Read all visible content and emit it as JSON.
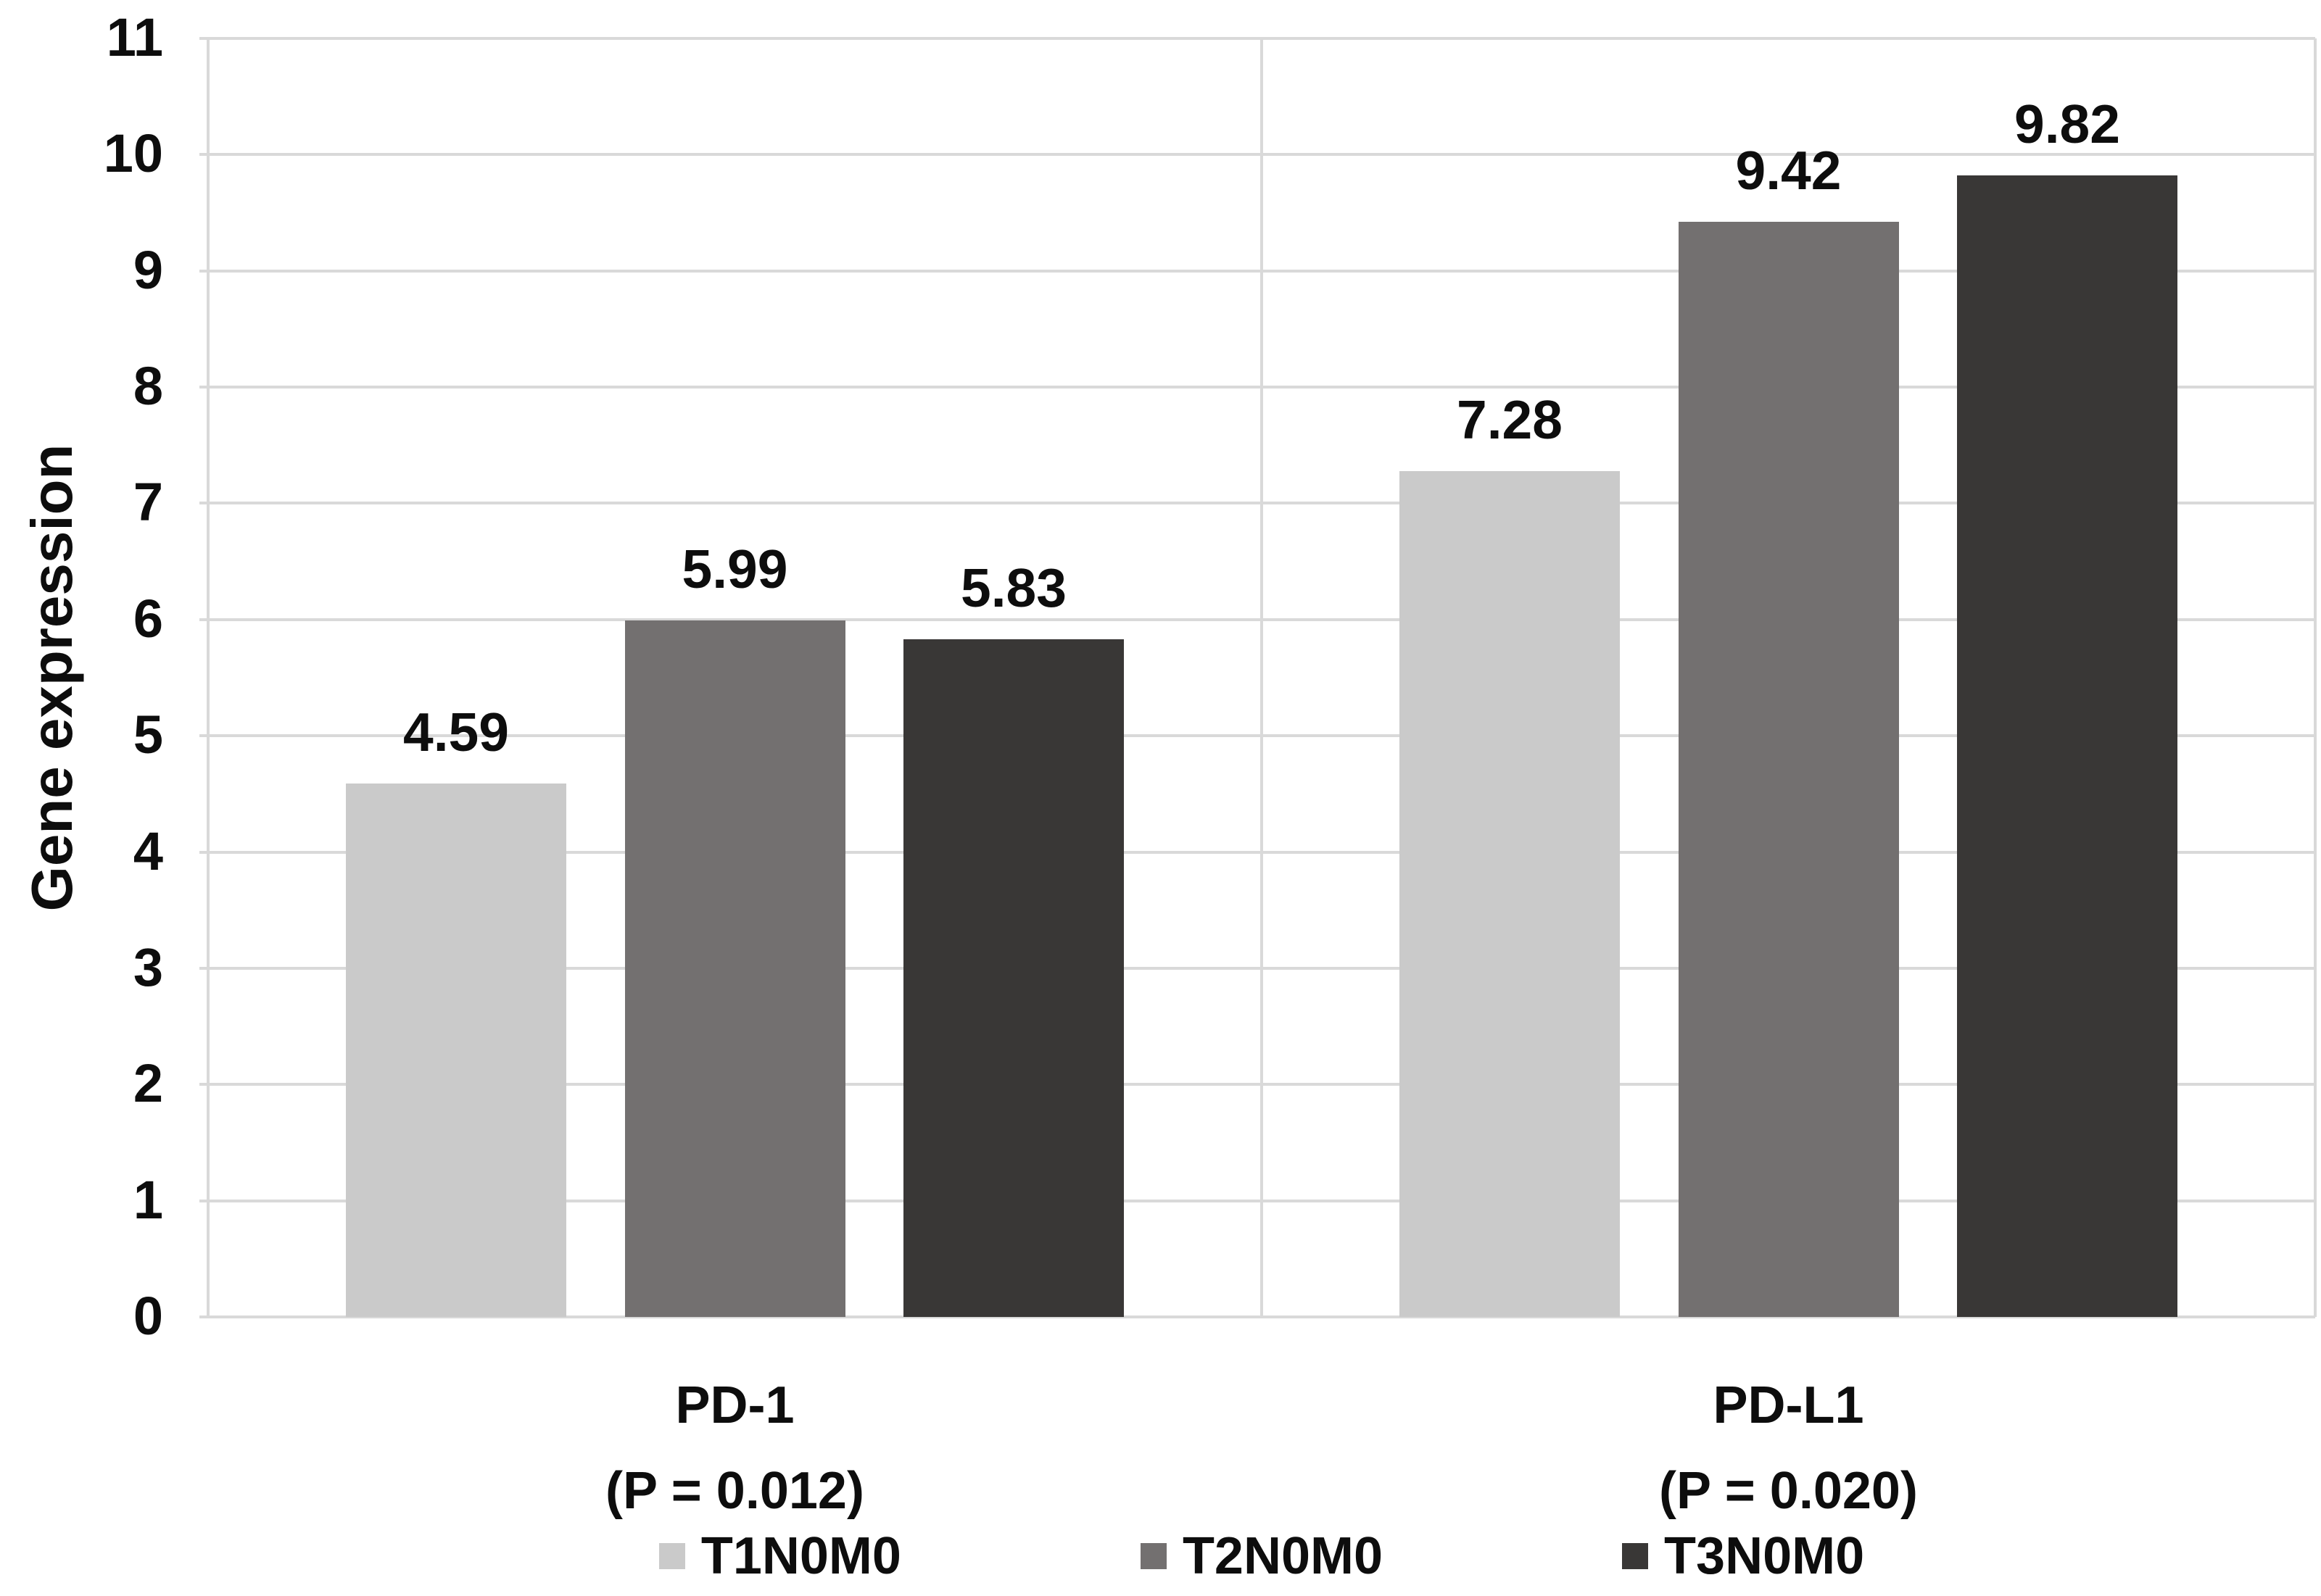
{
  "chart_data": {
    "type": "bar",
    "title": "",
    "ylabel": "Gene expression",
    "xlabel": "",
    "ylim": [
      0,
      11
    ],
    "yticks": [
      0,
      1,
      2,
      3,
      4,
      5,
      6,
      7,
      8,
      9,
      10,
      11
    ],
    "grid": true,
    "gridline_color": "#d9d9d9",
    "legend_position": "bottom",
    "categories": [
      {
        "label": "PD-1",
        "sublabel": "(P = 0.012)"
      },
      {
        "label": "PD-L1",
        "sublabel": "(P = 0.020)"
      }
    ],
    "series": [
      {
        "name": "T1N0M0",
        "color": "#cacaca",
        "values": [
          4.59,
          7.28
        ],
        "labels": [
          "4.59",
          "7.28"
        ]
      },
      {
        "name": "T2N0M0",
        "color": "#737070",
        "values": [
          5.99,
          9.42
        ],
        "labels": [
          "5.99",
          "9.42"
        ]
      },
      {
        "name": "T3N0M0",
        "color": "#393736",
        "values": [
          5.83,
          9.82
        ],
        "labels": [
          "5.83",
          "9.82"
        ]
      }
    ]
  }
}
